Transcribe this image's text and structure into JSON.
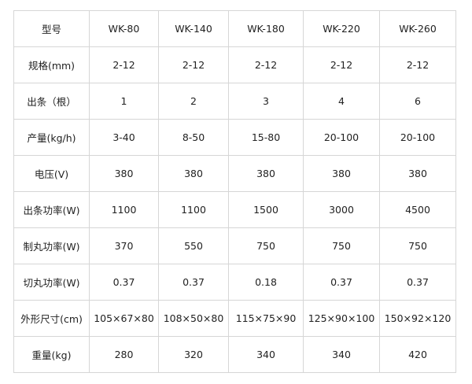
{
  "table": {
    "rows": [
      [
        "型号",
        "WK-80",
        "WK-140",
        "WK-180",
        "WK-220",
        "WK-260"
      ],
      [
        "规格(mm)",
        "2-12",
        "2-12",
        "2-12",
        "2-12",
        "2-12"
      ],
      [
        "出条（根）",
        "1",
        "2",
        "3",
        "4",
        "6"
      ],
      [
        "产量(kg/h)",
        "3-40",
        "8-50",
        "15-80",
        "20-100",
        "20-100"
      ],
      [
        "电压(V)",
        "380",
        "380",
        "380",
        "380",
        "380"
      ],
      [
        "出条功率(W)",
        "1100",
        "1100",
        "1500",
        "3000",
        "4500"
      ],
      [
        "制丸功率(W)",
        "370",
        "550",
        "750",
        "750",
        "750"
      ],
      [
        "切丸功率(W)",
        "0.37",
        "0.37",
        "0.18",
        "0.37",
        "0.37"
      ],
      [
        "外形尺寸(cm)",
        "105×67×80",
        "108×50×80",
        "115×75×90",
        "125×90×100",
        "150×92×120"
      ],
      [
        "重量(kg)",
        "280",
        "320",
        "340",
        "340",
        "420"
      ]
    ]
  }
}
